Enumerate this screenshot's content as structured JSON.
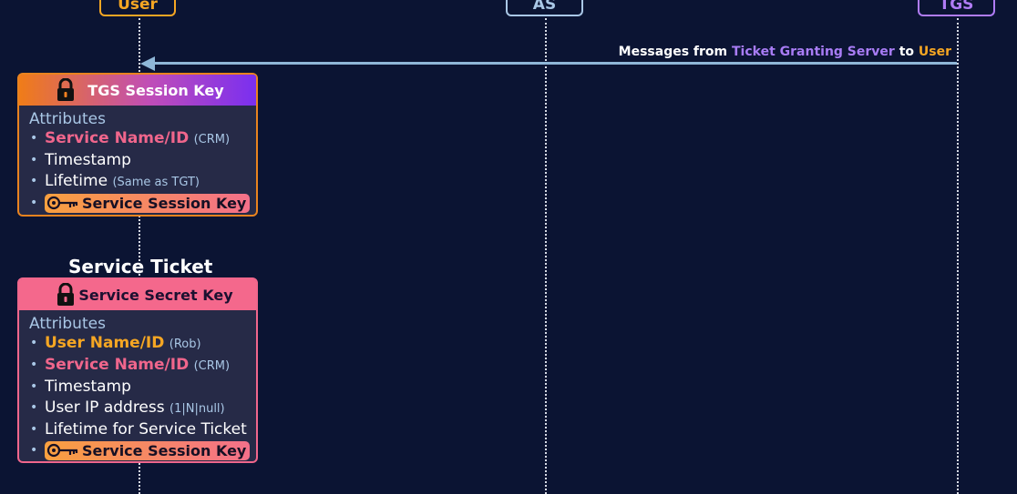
{
  "actors": {
    "user": "User",
    "as": "AS",
    "tgs": "TGS"
  },
  "message": {
    "prefix": "Messages from ",
    "from": "Ticket Granting Server",
    "middle": " to ",
    "to": "User"
  },
  "tgs_card": {
    "header": "TGS Session Key",
    "attributes_label": "Attributes",
    "items": [
      {
        "label": "Service Name/ID",
        "note": "(CRM)"
      },
      {
        "label": "Timestamp"
      },
      {
        "label": "Lifetime",
        "note": "(Same as TGT)"
      },
      {
        "label": "Service Session Key",
        "icon": "key-icon"
      }
    ]
  },
  "service_ticket": {
    "title": "Service Ticket",
    "header": "Service Secret Key",
    "attributes_label": "Attributes",
    "items": [
      {
        "label": "User Name/ID",
        "note": "(Rob)"
      },
      {
        "label": "Service Name/ID",
        "note": "(CRM)"
      },
      {
        "label": "Timestamp"
      },
      {
        "label": "User IP address",
        "note": "(1|N|null)"
      },
      {
        "label": "Lifetime for Service Ticket"
      },
      {
        "label": "Service Session Key",
        "icon": "key-icon"
      }
    ]
  },
  "colors": {
    "background": "#0b1433",
    "user": "#f5a623",
    "as": "#a9c7e6",
    "tgs": "#b07cf5",
    "arrow": "#8fb7d8",
    "pink": "#f0668c"
  },
  "icons": [
    "lock-icon",
    "key-icon",
    "arrow-left-icon"
  ]
}
